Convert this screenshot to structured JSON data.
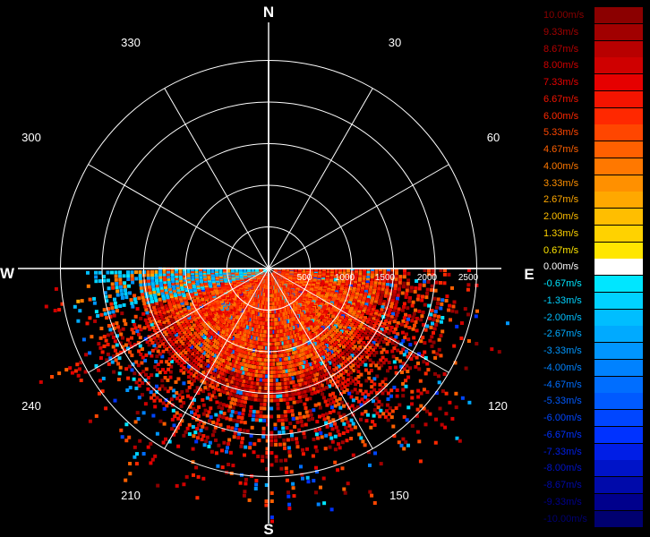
{
  "compass": {
    "north": "N",
    "south": "S",
    "east": "E",
    "west": "W"
  },
  "angle_labels": [
    "30",
    "60",
    "120",
    "150",
    "210",
    "240",
    "300",
    "330"
  ],
  "range_labels": [
    "500",
    "1000",
    "1500",
    "2000",
    "2500"
  ],
  "legend": [
    {
      "label": "10.00m/s",
      "color": "#8b0000"
    },
    {
      "label": "9.33m/s",
      "color": "#a10000"
    },
    {
      "label": "8.67m/s",
      "color": "#b80000"
    },
    {
      "label": "8.00m/s",
      "color": "#cf0000"
    },
    {
      "label": "7.33m/s",
      "color": "#e60000"
    },
    {
      "label": "6.67m/s",
      "color": "#f41400"
    },
    {
      "label": "6.00m/s",
      "color": "#ff2800"
    },
    {
      "label": "5.33m/s",
      "color": "#ff4600"
    },
    {
      "label": "4.67m/s",
      "color": "#ff6000"
    },
    {
      "label": "4.00m/s",
      "color": "#ff7800"
    },
    {
      "label": "3.33m/s",
      "color": "#ff9000"
    },
    {
      "label": "2.67m/s",
      "color": "#ffa800"
    },
    {
      "label": "2.00m/s",
      "color": "#ffbe00"
    },
    {
      "label": "1.33m/s",
      "color": "#ffd200"
    },
    {
      "label": "0.67m/s",
      "color": "#ffe600"
    },
    {
      "label": "0.00m/s",
      "color": "#ffffff"
    },
    {
      "label": "-0.67m/s",
      "color": "#00e6ff"
    },
    {
      "label": "-1.33m/s",
      "color": "#00d2ff"
    },
    {
      "label": "-2.00m/s",
      "color": "#00beff"
    },
    {
      "label": "-2.67m/s",
      "color": "#00aaff"
    },
    {
      "label": "-3.33m/s",
      "color": "#0096ff"
    },
    {
      "label": "-4.00m/s",
      "color": "#0082ff"
    },
    {
      "label": "-4.67m/s",
      "color": "#006eff"
    },
    {
      "label": "-5.33m/s",
      "color": "#005aff"
    },
    {
      "label": "-6.00m/s",
      "color": "#0046ff"
    },
    {
      "label": "-6.67m/s",
      "color": "#0032ff"
    },
    {
      "label": "-7.33m/s",
      "color": "#001ee6"
    },
    {
      "label": "-8.00m/s",
      "color": "#0014c8"
    },
    {
      "label": "-8.67m/s",
      "color": "#000aaa"
    },
    {
      "label": "-9.33m/s",
      "color": "#00008c"
    },
    {
      "label": "-10.00m/s",
      "color": "#000070"
    }
  ]
}
